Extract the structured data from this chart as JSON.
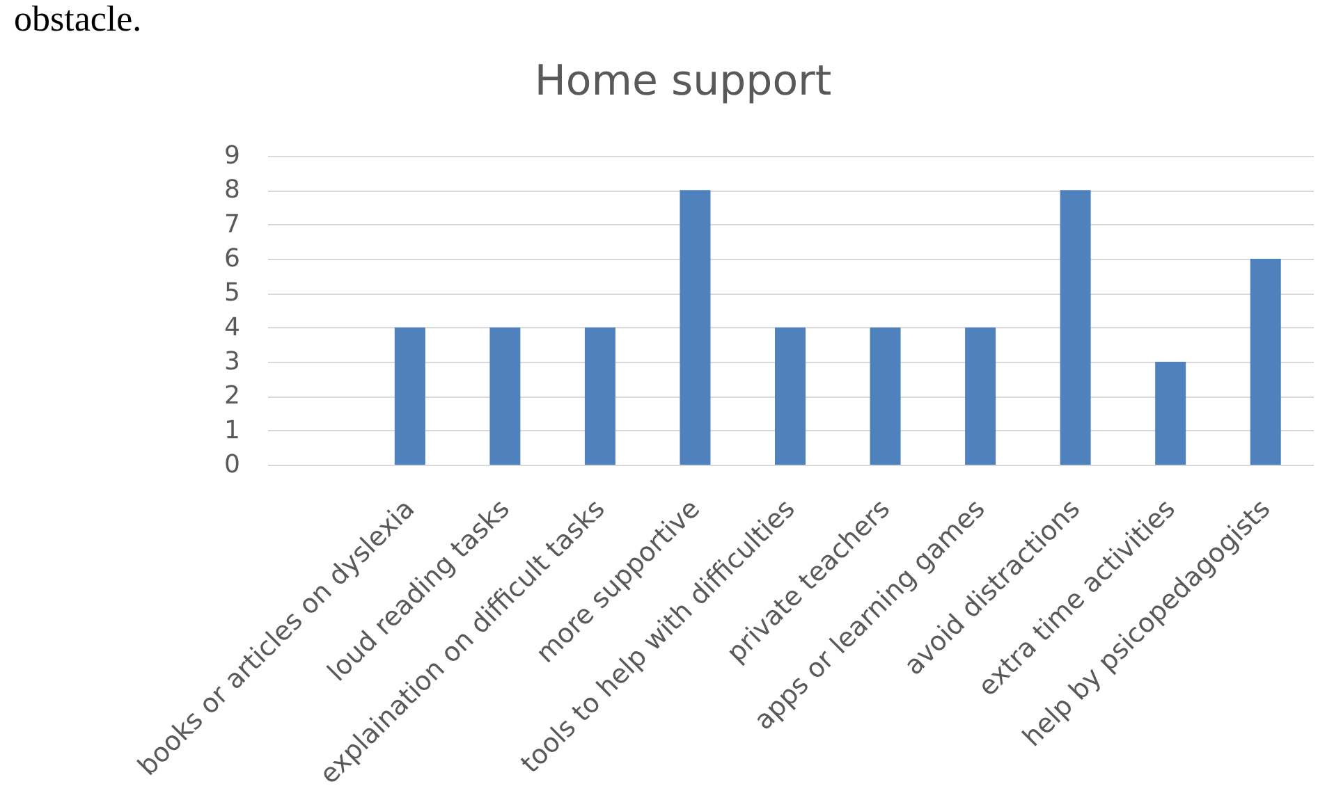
{
  "chart_data": {
    "type": "bar",
    "title": "Home support",
    "categories": [
      null,
      "books or articles on dyslexia",
      "loud reading tasks",
      "explaination on difficult tasks",
      "more supportive",
      "tools to help with difficulties",
      "private teachers",
      "apps or learning games",
      "avoid distractions",
      "extra time activities",
      "help by psicopedagogists"
    ],
    "values": [
      null,
      4,
      4,
      4,
      8,
      4,
      4,
      4,
      8,
      3,
      6
    ],
    "color": "#4f81bd",
    "ylim": [
      0,
      9
    ],
    "yticks": [
      0,
      1,
      2,
      3,
      4,
      5,
      6,
      7,
      8,
      9
    ],
    "grid": "y",
    "annotations": [
      "obstacle."
    ]
  }
}
